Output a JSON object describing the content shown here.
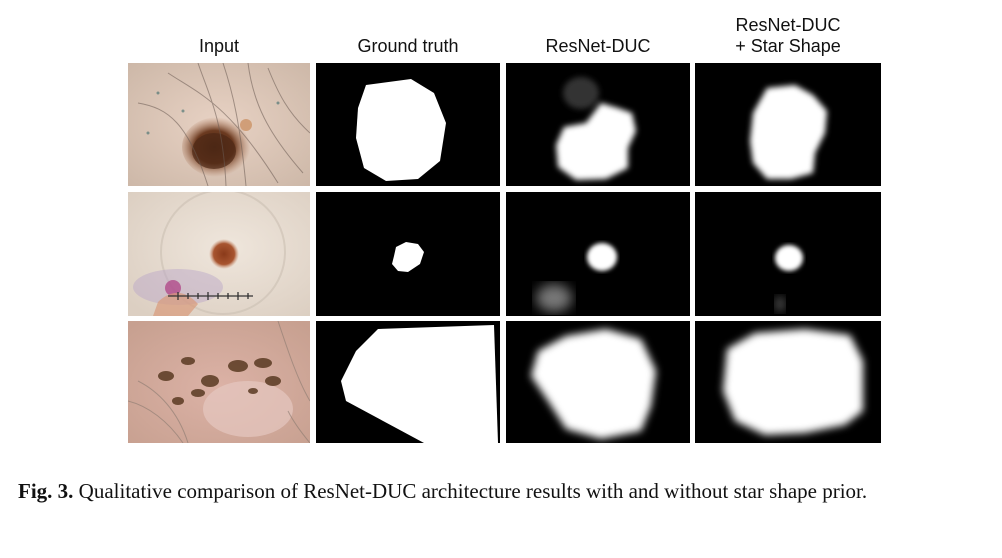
{
  "figure": {
    "column_headers": [
      "Input",
      "Ground truth",
      "ResNet-DUC",
      "ResNet-DUC\n+ Star Shape"
    ],
    "caption": {
      "label": "Fig. 3.",
      "text": " Qualitative comparison of ResNet-DUC architecture results with and without star shape prior."
    }
  }
}
